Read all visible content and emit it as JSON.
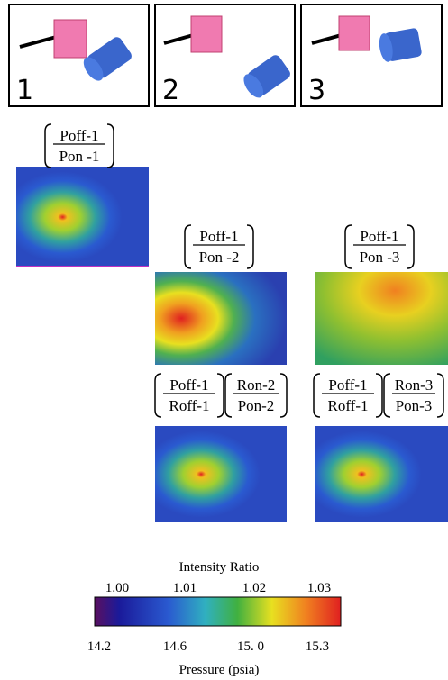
{
  "panels": [
    {
      "label": "1"
    },
    {
      "label": "2"
    },
    {
      "label": "3"
    }
  ],
  "ratios": [
    {
      "numerator": "Poff-1",
      "denominator": "Pon -1"
    },
    {
      "numerator": "Poff-1",
      "denominator": "Pon -2"
    },
    {
      "numerator": "Poff-1",
      "denominator": "Pon -3"
    },
    {
      "numerator": "Poff-1",
      "denominator": "Roff-1"
    },
    {
      "numerator": "Ron-2",
      "denominator": "Pon-2"
    },
    {
      "numerator": "Poff-1",
      "denominator": "Roff-1"
    },
    {
      "numerator": "Ron-3",
      "denominator": "Pon-3"
    }
  ],
  "colorbar": {
    "title": "Intensity Ratio",
    "top_ticks": [
      "1.00",
      "1.01",
      "1.02",
      "1.03"
    ],
    "bottom_ticks": [
      "14.2",
      "14.6",
      "15. 0",
      "15.3"
    ],
    "label": "Pressure (psia)"
  }
}
